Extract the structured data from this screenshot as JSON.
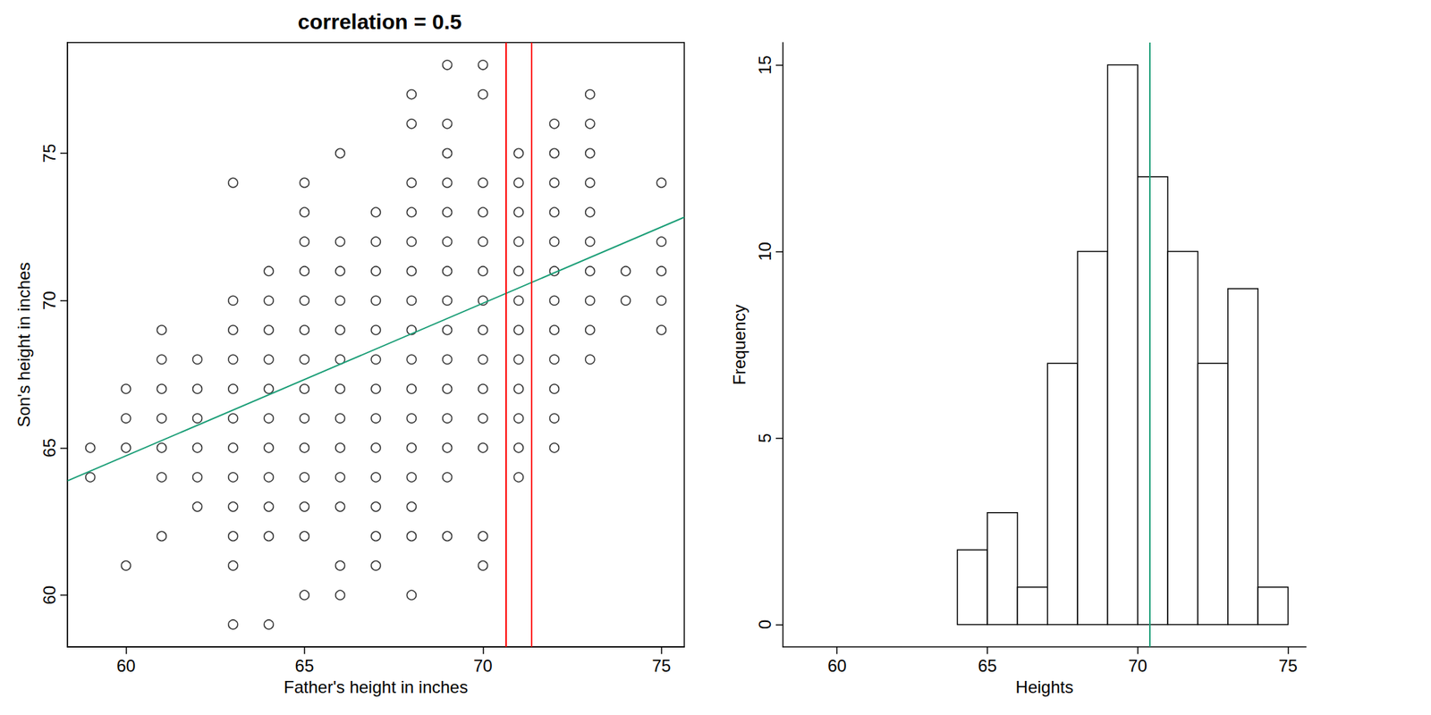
{
  "chart_data": [
    {
      "type": "scatter",
      "title": "correlation = 0.5",
      "x_label": "Father's height in inches",
      "y_label": "Son's height in inches",
      "xlim": [
        58.36,
        75.64
      ],
      "ylim": [
        58.24,
        78.76
      ],
      "xticks": [
        60,
        65,
        70,
        75
      ],
      "yticks": [
        60,
        65,
        70,
        75
      ],
      "marker": "open circle",
      "color": "#000000",
      "grid": false,
      "points": [
        {
          "x": 59,
          "y": [
            65,
            64
          ]
        },
        {
          "x": 60,
          "y": [
            67,
            66,
            65,
            61
          ]
        },
        {
          "x": 61,
          "y": [
            69,
            68,
            67,
            66,
            65,
            64,
            62
          ]
        },
        {
          "x": 62,
          "y": [
            68,
            67,
            66,
            65,
            64,
            63
          ]
        },
        {
          "x": 63,
          "y": [
            74,
            70,
            69,
            68,
            67,
            66,
            65,
            64,
            63,
            62,
            61,
            59
          ]
        },
        {
          "x": 64,
          "y": [
            71,
            70,
            69,
            68,
            67,
            66,
            65,
            64,
            63,
            62,
            59
          ]
        },
        {
          "x": 65,
          "y": [
            74,
            73,
            72,
            71,
            70,
            69,
            68,
            67,
            66,
            65,
            64,
            63,
            62,
            60
          ]
        },
        {
          "x": 66,
          "y": [
            75,
            72,
            71,
            70,
            69,
            68,
            67,
            66,
            65,
            64,
            63,
            61,
            60
          ]
        },
        {
          "x": 67,
          "y": [
            73,
            72,
            71,
            70,
            69,
            68,
            67,
            66,
            65,
            64,
            63,
            62,
            61
          ]
        },
        {
          "x": 68,
          "y": [
            77,
            76,
            74,
            73,
            72,
            71,
            70,
            69,
            68,
            67,
            66,
            65,
            64,
            63,
            62,
            60
          ]
        },
        {
          "x": 69,
          "y": [
            78,
            76,
            75,
            74,
            73,
            72,
            71,
            70,
            69,
            68,
            67,
            66,
            65,
            64,
            62
          ]
        },
        {
          "x": 70,
          "y": [
            78,
            77,
            74,
            73,
            72,
            71,
            70,
            69,
            68,
            67,
            66,
            65,
            62,
            61
          ]
        },
        {
          "x": 71,
          "y": [
            75,
            74,
            73,
            72,
            71,
            70,
            69,
            68,
            67,
            66,
            65,
            64
          ]
        },
        {
          "x": 72,
          "y": [
            76,
            75,
            74,
            73,
            72,
            71,
            70,
            69,
            68,
            67,
            66,
            65
          ]
        },
        {
          "x": 73,
          "y": [
            77,
            76,
            75,
            74,
            73,
            72,
            71,
            70,
            69,
            68
          ]
        },
        {
          "x": 74,
          "y": [
            71,
            70
          ]
        },
        {
          "x": 75,
          "y": [
            74,
            72,
            71,
            70,
            69
          ]
        }
      ],
      "regression_line": {
        "x": [
          58.36,
          75.64
        ],
        "y": [
          63.88,
          72.83
        ],
        "color": "#1b9e77"
      },
      "vertical_lines": {
        "x": [
          70.65,
          71.35
        ],
        "color": "#ff0000"
      }
    },
    {
      "type": "histogram",
      "x_label": "Heights",
      "y_label": "Frequency",
      "xlim": [
        58.2,
        75.6
      ],
      "ylim": [
        -0.6,
        15.6
      ],
      "xticks": [
        60,
        65,
        70,
        75
      ],
      "yticks": [
        0,
        5,
        10,
        15
      ],
      "bins": [
        64,
        65,
        66,
        67,
        68,
        69,
        70,
        71,
        72,
        73,
        74,
        75
      ],
      "counts": [
        2,
        3,
        1,
        7,
        10,
        15,
        12,
        10,
        7,
        9,
        1
      ],
      "color": "#ffffff",
      "grid": false,
      "vertical_line": {
        "x": 70.4,
        "color": "#1b9e77"
      }
    }
  ]
}
